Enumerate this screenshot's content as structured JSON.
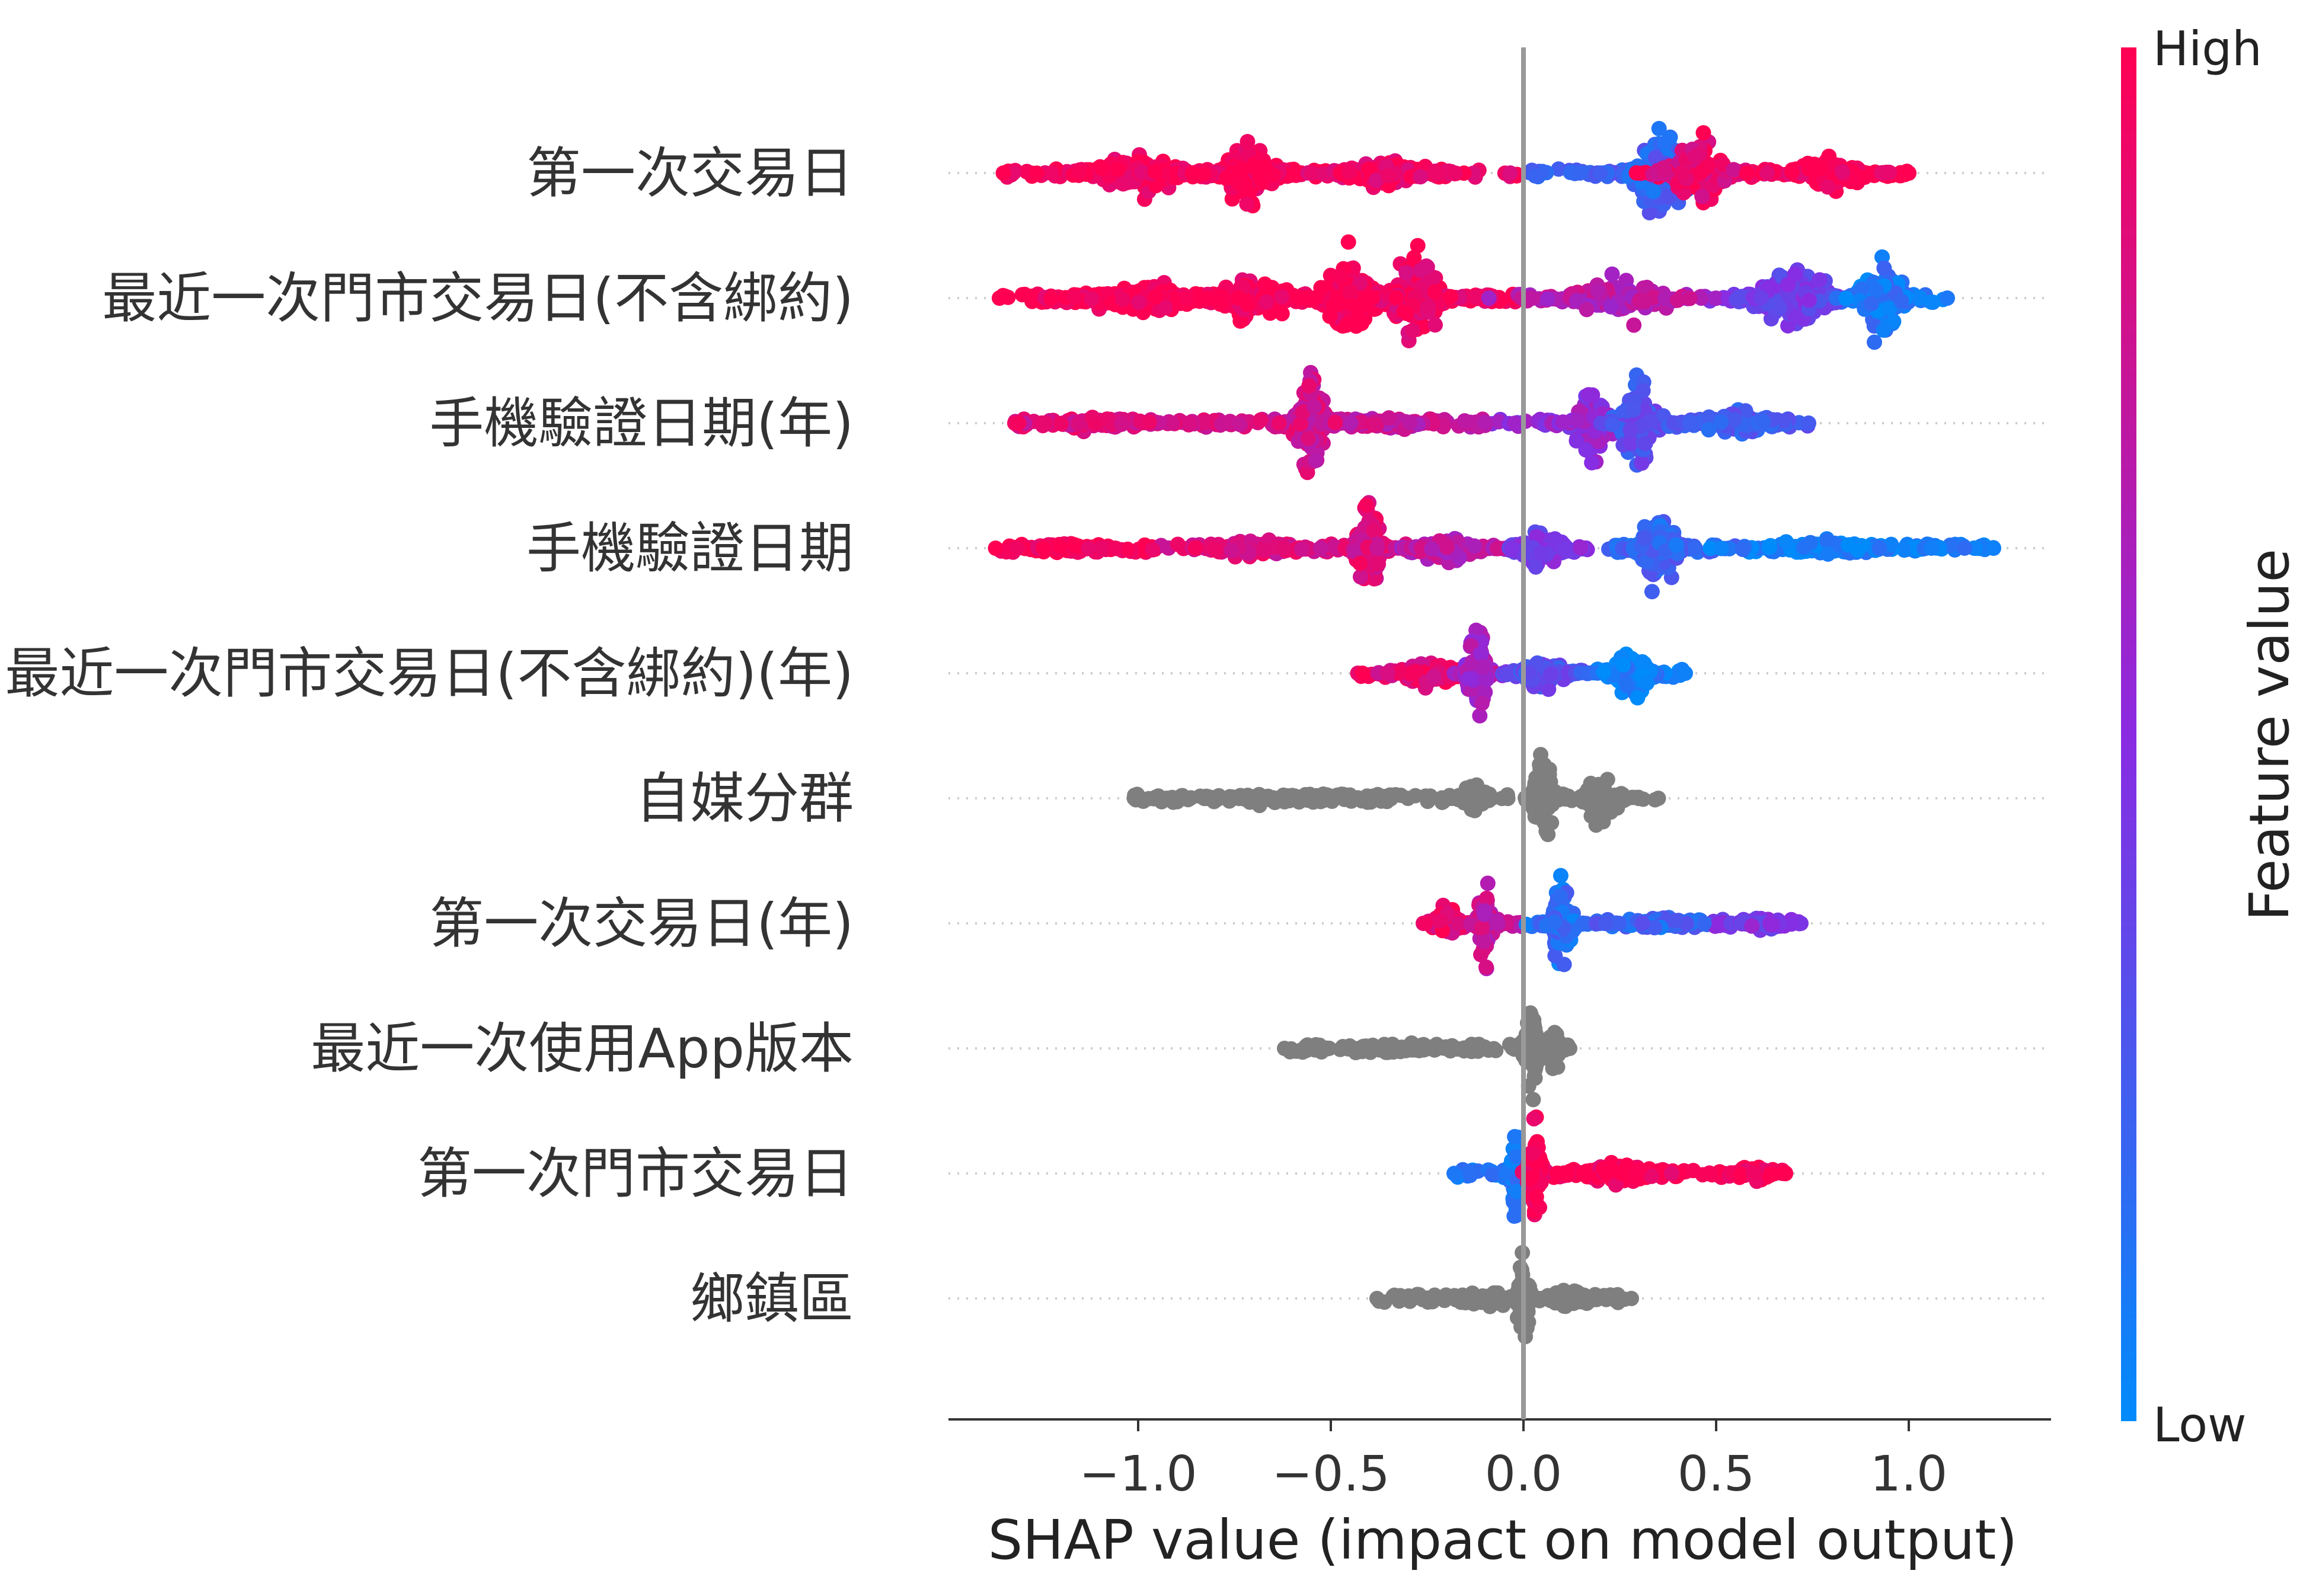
{
  "chart_data": {
    "type": "scatter",
    "subtype": "shap-beeswarm",
    "xlabel": "SHAP value (impact on model output)",
    "xlim": [
      -1.5,
      1.36
    ],
    "xticks": [
      {
        "value": -1.0,
        "label": "−1.0"
      },
      {
        "value": -0.5,
        "label": "−0.5"
      },
      {
        "value": 0.0,
        "label": "0.0"
      },
      {
        "value": 0.5,
        "label": "0.5"
      },
      {
        "value": 1.0,
        "label": "1.0"
      }
    ],
    "colorbar": {
      "label": "Feature value",
      "high_label": "High",
      "low_label": "Low",
      "high_color": "#ff0d57",
      "low_color": "#1e88e5"
    },
    "gray_color": "#7f7f7f",
    "zero_line_color": "#999999",
    "features": [
      {
        "name": "第一次交易日",
        "colored": true,
        "min": -1.35,
        "max": 1.0,
        "clusters": [
          {
            "center": -1.0,
            "width": 0.2,
            "height": 0.35,
            "color": 1.0
          },
          {
            "center": -0.72,
            "width": 0.12,
            "height": 0.55,
            "color": 1.0
          },
          {
            "center": -0.35,
            "width": 0.2,
            "height": 0.25,
            "color": 0.95
          },
          {
            "center": 0.36,
            "width": 0.1,
            "height": 0.95,
            "color": 0.2
          },
          {
            "center": 0.45,
            "width": 0.12,
            "height": 0.6,
            "color": 0.9
          },
          {
            "center": 0.8,
            "width": 0.15,
            "height": 0.3,
            "color": 1.0
          }
        ]
      },
      {
        "name": "最近一次門市交易日(不含綁約)",
        "colored": true,
        "min": -1.36,
        "max": 1.1,
        "clusters": [
          {
            "center": -1.0,
            "width": 0.25,
            "height": 0.3,
            "color": 1.0
          },
          {
            "center": -0.7,
            "width": 0.15,
            "height": 0.45,
            "color": 1.0
          },
          {
            "center": -0.45,
            "width": 0.1,
            "height": 0.9,
            "color": 1.0
          },
          {
            "center": -0.28,
            "width": 0.1,
            "height": 0.8,
            "color": 0.95
          },
          {
            "center": 0.25,
            "width": 0.2,
            "height": 0.35,
            "color": 0.7
          },
          {
            "center": 0.7,
            "width": 0.15,
            "height": 0.55,
            "color": 0.4
          },
          {
            "center": 0.93,
            "width": 0.08,
            "height": 0.85,
            "color": 0.1
          }
        ]
      },
      {
        "name": "手機驗證日期(年)",
        "colored": true,
        "min": -1.32,
        "max": 0.74,
        "clusters": [
          {
            "center": -1.1,
            "width": 0.2,
            "height": 0.12,
            "color": 0.85
          },
          {
            "center": -0.55,
            "width": 0.06,
            "height": 0.9,
            "color": 0.8
          },
          {
            "center": -0.35,
            "width": 0.1,
            "height": 0.15,
            "color": 0.75
          },
          {
            "center": 0.18,
            "width": 0.07,
            "height": 0.75,
            "color": 0.55
          },
          {
            "center": 0.3,
            "width": 0.08,
            "height": 0.75,
            "color": 0.3
          },
          {
            "center": 0.55,
            "width": 0.15,
            "height": 0.25,
            "color": 0.25
          }
        ]
      },
      {
        "name": "手機驗證日期",
        "colored": true,
        "min": -1.37,
        "max": 1.22,
        "clusters": [
          {
            "center": -1.2,
            "width": 0.12,
            "height": 0.1,
            "color": 1.0
          },
          {
            "center": -0.7,
            "width": 0.15,
            "height": 0.18,
            "color": 0.85
          },
          {
            "center": -0.4,
            "width": 0.05,
            "height": 0.95,
            "color": 0.85
          },
          {
            "center": -0.2,
            "width": 0.12,
            "height": 0.3,
            "color": 0.7
          },
          {
            "center": 0.05,
            "width": 0.1,
            "height": 0.4,
            "color": 0.45
          },
          {
            "center": 0.35,
            "width": 0.07,
            "height": 0.85,
            "color": 0.2
          },
          {
            "center": 0.8,
            "width": 0.3,
            "height": 0.15,
            "color": 0.05
          }
        ]
      },
      {
        "name": "最近一次門市交易日(不含綁約)(年)",
        "colored": true,
        "min": -0.43,
        "max": 0.42,
        "clusters": [
          {
            "center": -0.25,
            "width": 0.12,
            "height": 0.25,
            "color": 0.9
          },
          {
            "center": -0.12,
            "width": 0.04,
            "height": 0.95,
            "color": 0.6
          },
          {
            "center": 0.05,
            "width": 0.1,
            "height": 0.3,
            "color": 0.3
          },
          {
            "center": 0.28,
            "width": 0.08,
            "height": 0.45,
            "color": 0.05
          }
        ]
      },
      {
        "name": "自媒分群",
        "colored": false,
        "min": -1.01,
        "max": 0.35,
        "clusters": [
          {
            "center": -0.6,
            "width": 0.3,
            "height": 0.1,
            "color": null
          },
          {
            "center": -0.13,
            "width": 0.05,
            "height": 0.35,
            "color": null
          },
          {
            "center": 0.05,
            "width": 0.04,
            "height": 0.9,
            "color": null
          },
          {
            "center": 0.2,
            "width": 0.07,
            "height": 0.45,
            "color": null
          }
        ]
      },
      {
        "name": "第一次交易日(年)",
        "colored": true,
        "min": -0.26,
        "max": 0.72,
        "clusters": [
          {
            "center": -0.2,
            "width": 0.05,
            "height": 0.3,
            "color": 0.9
          },
          {
            "center": -0.1,
            "width": 0.03,
            "height": 0.85,
            "color": 0.75
          },
          {
            "center": 0.1,
            "width": 0.05,
            "height": 0.7,
            "color": 0.15
          },
          {
            "center": 0.35,
            "width": 0.12,
            "height": 0.15,
            "color": 0.2
          },
          {
            "center": 0.62,
            "width": 0.08,
            "height": 0.15,
            "color": 0.45
          }
        ]
      },
      {
        "name": "最近一次使用App版本",
        "colored": false,
        "min": -0.62,
        "max": 0.12,
        "clusters": [
          {
            "center": -0.3,
            "width": 0.2,
            "height": 0.1,
            "color": null
          },
          {
            "center": 0.02,
            "width": 0.03,
            "height": 0.95,
            "color": null
          },
          {
            "center": 0.08,
            "width": 0.03,
            "height": 0.4,
            "color": null
          }
        ]
      },
      {
        "name": "第一次門市交易日",
        "colored": true,
        "min": -0.18,
        "max": 0.68,
        "clusters": [
          {
            "center": -0.02,
            "width": 0.02,
            "height": 0.9,
            "color": 0.1
          },
          {
            "center": 0.03,
            "width": 0.03,
            "height": 0.9,
            "color": 1.0
          },
          {
            "center": 0.25,
            "width": 0.15,
            "height": 0.2,
            "color": 1.0
          },
          {
            "center": 0.6,
            "width": 0.07,
            "height": 0.18,
            "color": 1.0
          }
        ]
      },
      {
        "name": "鄉鎮區",
        "colored": false,
        "min": -0.38,
        "max": 0.28,
        "clusters": [
          {
            "center": -0.1,
            "width": 0.15,
            "height": 0.15,
            "color": null
          },
          {
            "center": 0.0,
            "width": 0.025,
            "height": 0.95,
            "color": null
          },
          {
            "center": 0.12,
            "width": 0.08,
            "height": 0.2,
            "color": null
          }
        ]
      }
    ]
  }
}
